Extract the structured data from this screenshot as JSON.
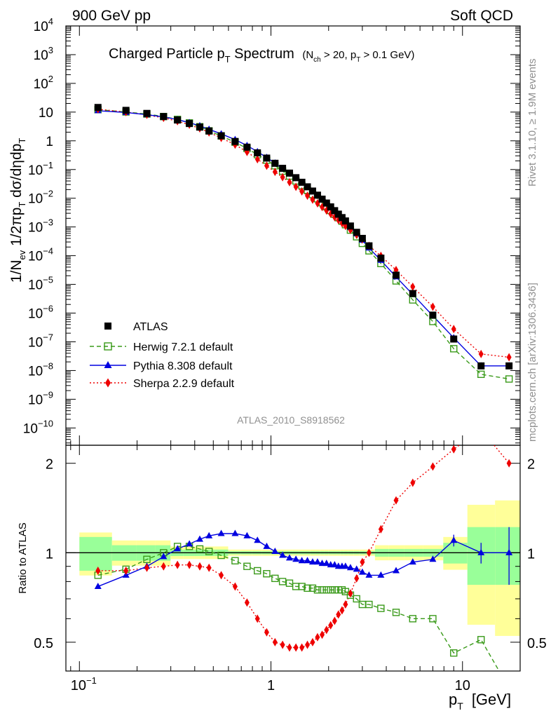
{
  "header": {
    "left": "900 GeV pp",
    "right": "Soft QCD"
  },
  "title": {
    "main": "Charged Particle p",
    "main_sub": "T",
    "main_tail": " Spectrum",
    "cond_open": "(N",
    "cond_sub1": "ch",
    "cond_mid": " > 20, p",
    "cond_sub2": "T",
    "cond_close": " > 0.1 GeV)"
  },
  "side_labels": {
    "top": "Rivet 3.1.10, ≥ 1.9M events",
    "bottom": "mcplots.cern.ch [arXiv:1306.3436]"
  },
  "analysis_tag": "ATLAS_2010_S8918562",
  "legend": [
    {
      "key": "atlas",
      "label": "ATLAS"
    },
    {
      "key": "herwig",
      "label": "Herwig 7.2.1 default"
    },
    {
      "key": "pythia",
      "label": "Pythia 8.308 default"
    },
    {
      "key": "sherpa",
      "label": "Sherpa 2.2.9 default"
    }
  ],
  "colors": {
    "atlas": "#000000",
    "herwig": "#3a9a1a",
    "pythia": "#0000e0",
    "sherpa": "#ee0000",
    "band_inner": "#99ff99",
    "band_outer": "#ffff99"
  },
  "ylabel": {
    "a": "1/N",
    "a_sub": "ev",
    "b": " 1/2πp",
    "b_sub": "T",
    "c": " dσ/dηdp",
    "c_sub": "T"
  },
  "ratio_ylabel": "Ratio to ATLAS",
  "xlabel": {
    "main": "p",
    "sub": "T",
    "unit": "[GeV]"
  },
  "x_ticks": [
    {
      "v": 0.1,
      "base": "10",
      "exp": "−1"
    },
    {
      "v": 1,
      "base": "1",
      "exp": ""
    },
    {
      "v": 10,
      "base": "10",
      "exp": ""
    }
  ],
  "y_ticks": [
    {
      "exp": 4,
      "label": "10",
      "sup": "4"
    },
    {
      "exp": 3,
      "label": "10",
      "sup": "3"
    },
    {
      "exp": 2,
      "label": "10",
      "sup": "2"
    },
    {
      "exp": 1,
      "label": "10",
      "sup": ""
    },
    {
      "exp": 0,
      "label": "1",
      "sup": ""
    },
    {
      "exp": -1,
      "label": "10",
      "sup": "−1"
    },
    {
      "exp": -2,
      "label": "10",
      "sup": "−2"
    },
    {
      "exp": -3,
      "label": "10",
      "sup": "−3"
    },
    {
      "exp": -4,
      "label": "10",
      "sup": "−4"
    },
    {
      "exp": -5,
      "label": "10",
      "sup": "−5"
    },
    {
      "exp": -6,
      "label": "10",
      "sup": "−6"
    },
    {
      "exp": -7,
      "label": "10",
      "sup": "−7"
    },
    {
      "exp": -8,
      "label": "10",
      "sup": "−8"
    },
    {
      "exp": -9,
      "label": "10",
      "sup": "−9"
    },
    {
      "exp": -10,
      "label": "10",
      "sup": "−10"
    }
  ],
  "ratio_ticks": [
    {
      "v": 0.5,
      "label": "0.5"
    },
    {
      "v": 1,
      "label": "1"
    },
    {
      "v": 2,
      "label": "2"
    }
  ],
  "chart_data": {
    "type": "scatter",
    "x_scale": "log",
    "y_scale": "log",
    "xlim": [
      0.085,
      20
    ],
    "ylim": [
      2.5e-11,
      10000
    ],
    "ratio_ylim": [
      0.4,
      2.3
    ],
    "x": [
      0.125,
      0.175,
      0.225,
      0.275,
      0.325,
      0.375,
      0.425,
      0.475,
      0.55,
      0.65,
      0.75,
      0.85,
      0.95,
      1.05,
      1.15,
      1.25,
      1.35,
      1.45,
      1.55,
      1.65,
      1.75,
      1.85,
      1.95,
      2.05,
      2.15,
      2.25,
      2.35,
      2.45,
      2.6,
      2.8,
      3.0,
      3.25,
      3.75,
      4.5,
      5.5,
      7.0,
      9.0,
      12.5,
      17.5
    ],
    "series": [
      {
        "key": "atlas",
        "name": "ATLAS",
        "values": [
          14.5,
          11.5,
          9.0,
          7.0,
          5.3,
          4.0,
          3.0,
          2.2,
          1.5,
          0.95,
          0.6,
          0.38,
          0.25,
          0.165,
          0.11,
          0.075,
          0.052,
          0.036,
          0.025,
          0.0178,
          0.0128,
          0.0093,
          0.0068,
          0.005,
          0.0037,
          0.0028,
          0.00212,
          0.00162,
          0.00108,
          0.00065,
          0.0004,
          0.00022,
          8.2e-05,
          2.1e-05,
          4.8e-06,
          8.5e-07,
          1.25e-07,
          1.45e-08,
          1.45e-08
        ]
      },
      {
        "key": "herwig",
        "name": "Herwig 7.2.1 default",
        "ratio": [
          0.84,
          0.88,
          0.95,
          1.0,
          1.05,
          1.05,
          1.03,
          1.01,
          0.98,
          0.94,
          0.9,
          0.87,
          0.85,
          0.82,
          0.8,
          0.79,
          0.77,
          0.77,
          0.76,
          0.76,
          0.75,
          0.75,
          0.75,
          0.75,
          0.75,
          0.75,
          0.75,
          0.74,
          0.72,
          0.7,
          0.67,
          0.67,
          0.65,
          0.63,
          0.6,
          0.6,
          0.46,
          0.51,
          0.35
        ]
      },
      {
        "key": "pythia",
        "name": "Pythia 8.308 default",
        "ratio": [
          0.77,
          0.84,
          0.9,
          0.97,
          1.03,
          1.07,
          1.11,
          1.14,
          1.16,
          1.16,
          1.14,
          1.1,
          1.05,
          1.01,
          0.98,
          0.96,
          0.95,
          0.94,
          0.94,
          0.93,
          0.93,
          0.92,
          0.92,
          0.91,
          0.91,
          0.9,
          0.9,
          0.9,
          0.89,
          0.88,
          0.86,
          0.84,
          0.84,
          0.87,
          0.93,
          0.95,
          1.1,
          1.0,
          1.0
        ]
      },
      {
        "key": "sherpa",
        "name": "Sherpa 2.2.9 default",
        "ratio": [
          0.87,
          0.87,
          0.89,
          0.9,
          0.91,
          0.91,
          0.9,
          0.89,
          0.84,
          0.77,
          0.68,
          0.6,
          0.54,
          0.5,
          0.49,
          0.48,
          0.48,
          0.48,
          0.49,
          0.5,
          0.52,
          0.53,
          0.55,
          0.57,
          0.59,
          0.62,
          0.64,
          0.67,
          0.73,
          0.82,
          0.93,
          1.0,
          1.2,
          1.5,
          1.72,
          1.95,
          2.23,
          2.6,
          2.0
        ]
      }
    ]
  }
}
